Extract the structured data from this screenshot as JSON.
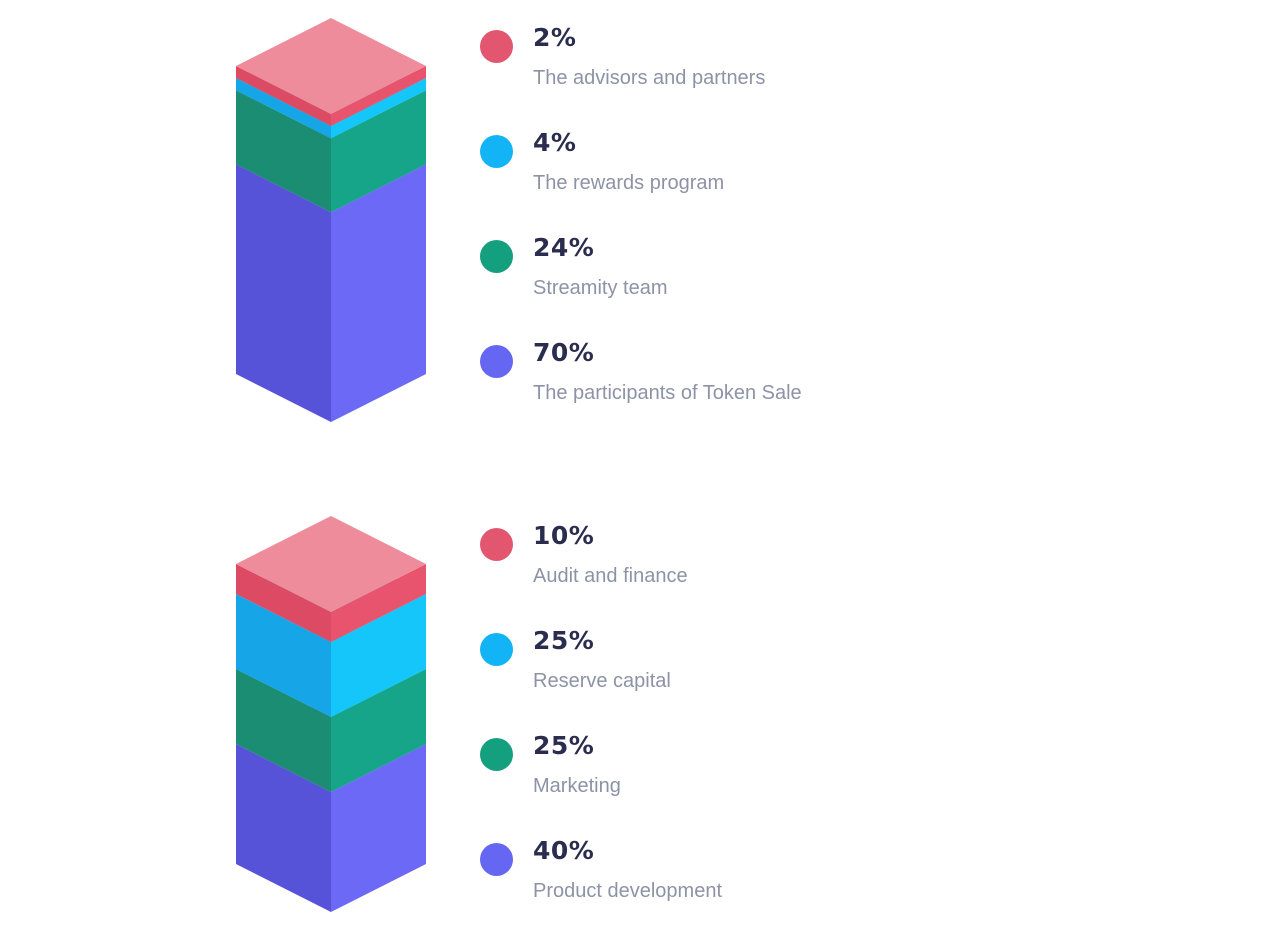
{
  "chart_data": [
    {
      "type": "stacked-bar",
      "series": [
        {
          "value": 2,
          "percent_label": "2%",
          "label": "The advisors and partners",
          "color": "#e2566f"
        },
        {
          "value": 4,
          "percent_label": "4%",
          "label": "The rewards program",
          "color": "#12b4f5"
        },
        {
          "value": 24,
          "percent_label": "24%",
          "label": "Streamity team",
          "color": "#14a07e"
        },
        {
          "value": 70,
          "percent_label": "70%",
          "label": "The participants of Token Sale",
          "color": "#6566f2"
        }
      ]
    },
    {
      "type": "stacked-bar",
      "series": [
        {
          "value": 10,
          "percent_label": "10%",
          "label": "Audit and finance",
          "color": "#e2566f"
        },
        {
          "value": 25,
          "percent_label": "25%",
          "label": "Reserve capital",
          "color": "#12b4f5"
        },
        {
          "value": 25,
          "percent_label": "25%",
          "label": "Marketing",
          "color": "#14a07e"
        },
        {
          "value": 40,
          "percent_label": "40%",
          "label": "Product development",
          "color": "#6566f2"
        }
      ]
    }
  ],
  "palette": {
    "pink": {
      "top": "#ee8c9c",
      "left": "#dd4a64",
      "right": "#e8536d"
    },
    "cyan": {
      "top": "#5fd8f8",
      "left": "#16a6e8",
      "right": "#14c6fa"
    },
    "green": {
      "top": "#52c3a7",
      "left": "#1b8d73",
      "right": "#16a589"
    },
    "violet": {
      "top": "#8f8ef8",
      "left": "#5753d8",
      "right": "#6c69f6"
    }
  }
}
